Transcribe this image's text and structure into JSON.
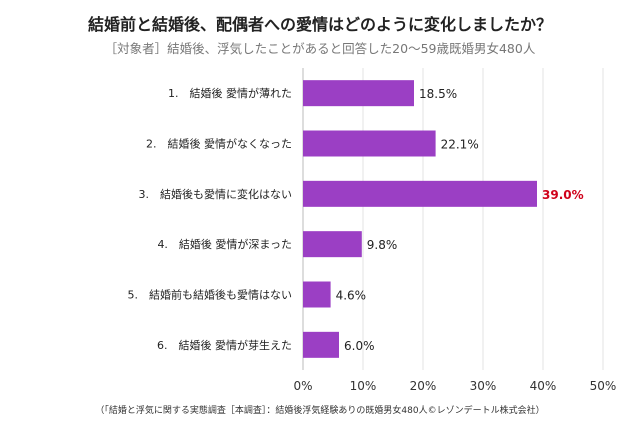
{
  "chart_data": {
    "type": "bar",
    "orientation": "horizontal",
    "title": "結婚前と結婚後、配偶者への愛情はどのように変化しましたか？",
    "subtitle": "［対象者］結婚後、浮気したことがあると回答した20〜59歳既婚男女480人",
    "categories": [
      "1.　結婚後 愛情が薄れた",
      "2.　結婚後 愛情がなくなった",
      "3.　結婚後も愛情に変化はない",
      "4.　結婚後 愛情が深まった",
      "5.　結婚前も結婚後も愛情はない",
      "6.　結婚後 愛情が芽生えた"
    ],
    "values": [
      18.5,
      22.1,
      39.0,
      9.8,
      4.6,
      6.0
    ],
    "data_labels": [
      "18.5%",
      "22.1%",
      "39.0%",
      "9.8%",
      "4.6%",
      "6.0%"
    ],
    "highlight_index": 2,
    "xlim": [
      0,
      50
    ],
    "xticks": [
      "0%",
      "10%",
      "20%",
      "30%",
      "40%",
      "50%"
    ],
    "grid": true,
    "bar_color": "#9b3fc4",
    "highlight_label_color": "#d0021b",
    "note": "（「結婚と浮気に関する実態調査［本調査］：結婚後浮気経験ありの既婚男女480人©レゾンデートル株式会社）"
  }
}
